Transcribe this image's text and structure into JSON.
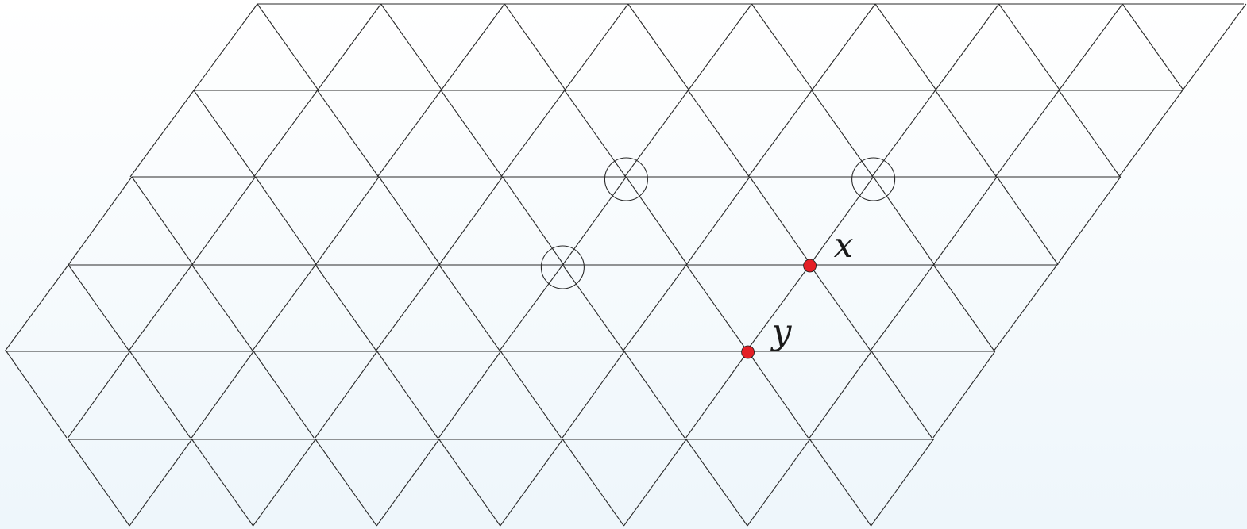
{
  "diagram": {
    "type": "triangular-lattice",
    "line_color": "#2a2a2a",
    "background_top": "#ffffff",
    "background_bottom": "#eef6fb",
    "circled_vertices": [
      {
        "name": "circled-vertex-1",
        "row": 2,
        "col": 4
      },
      {
        "name": "circled-vertex-2",
        "row": 2,
        "col": 6
      },
      {
        "name": "circled-vertex-3",
        "row": 3,
        "col": 4
      }
    ],
    "labeled_points": [
      {
        "name": "vertex-x",
        "label": "x",
        "row": 3,
        "col": 6,
        "color": "#e41f26"
      },
      {
        "name": "vertex-y",
        "label": "y",
        "row": 4,
        "col": 6,
        "color": "#e41f26"
      }
    ]
  }
}
